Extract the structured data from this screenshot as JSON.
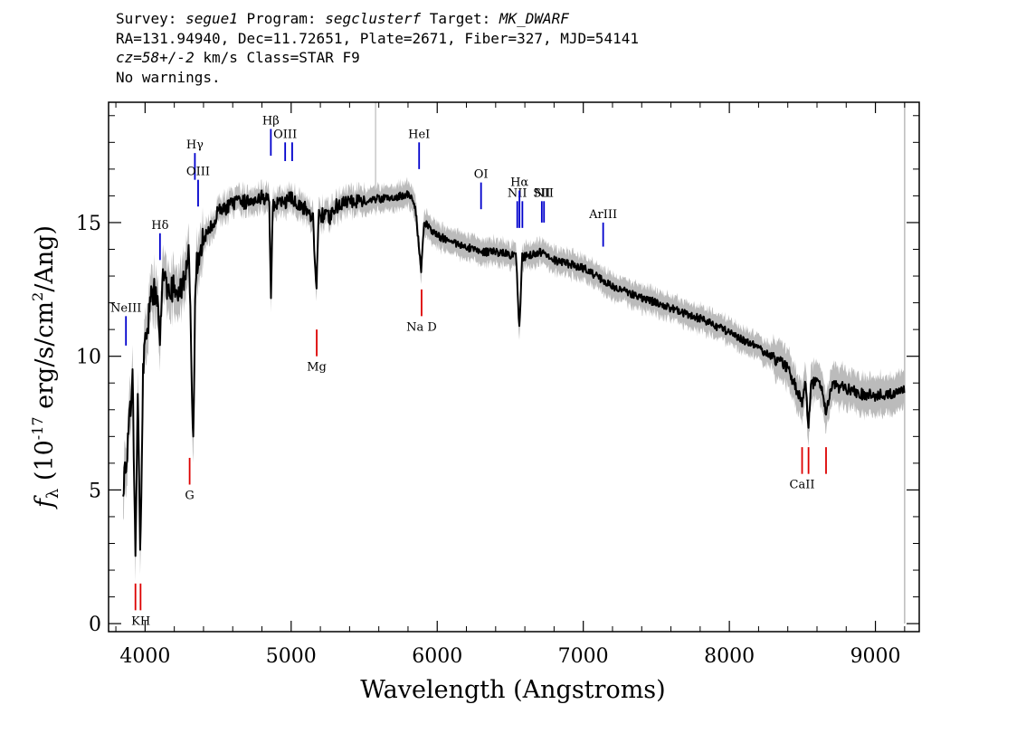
{
  "header": {
    "line1": {
      "survey_label": "Survey: ",
      "survey": "segue1",
      "program_label": " Program: ",
      "program": "segclusterf",
      "target_label": " Target: ",
      "target": "MK_DWARF"
    },
    "line2": "RA=131.94940, Dec=11.72651, Plate=2671, Fiber=327, MJD=54141",
    "line3": {
      "cz": "cz=58+/-2",
      "rest": " km/s Class=STAR F9"
    },
    "line4": "No warnings."
  },
  "chart_data": {
    "type": "line",
    "xlabel": "Wavelength (Angstroms)",
    "ylabel": "f_λ (10^-17 erg/s/cm²/Ang)",
    "ylabel_parts": {
      "f": "f",
      "sub": "λ",
      "pre": " (10",
      "exp": "-17",
      "mid": " erg/s/cm",
      "exp2": "2",
      "post": "/Ang)"
    },
    "xlim": [
      3750,
      9300
    ],
    "ylim": [
      -0.3,
      19.5
    ],
    "xticks": [
      4000,
      5000,
      6000,
      7000,
      8000,
      9000
    ],
    "xtick_labels": [
      "4000",
      "5000",
      "6000",
      "7000",
      "8000",
      "9000"
    ],
    "yticks": [
      0,
      5,
      10,
      15
    ],
    "ytick_labels": [
      "0",
      "5",
      "10",
      "15"
    ],
    "colors": {
      "flux": "#000000",
      "error_band": "#bbbbbb",
      "emission": "#0000cc",
      "absorption": "#dd0000"
    },
    "flux_anchors": [
      [
        3850,
        5.2
      ],
      [
        3880,
        6.5
      ],
      [
        3900,
        8.0
      ],
      [
        3915,
        9.5
      ],
      [
        3933,
        2.2
      ],
      [
        3950,
        8.5
      ],
      [
        3968,
        2.4
      ],
      [
        3985,
        9.5
      ],
      [
        4000,
        10.5
      ],
      [
        4050,
        12.5
      ],
      [
        4080,
        12.3
      ],
      [
        4101,
        10.5
      ],
      [
        4120,
        12.8
      ],
      [
        4200,
        12.5
      ],
      [
        4250,
        12.6
      ],
      [
        4300,
        13.8
      ],
      [
        4330,
        6.5
      ],
      [
        4345,
        13.0
      ],
      [
        4380,
        14.3
      ],
      [
        4400,
        14.3
      ],
      [
        4450,
        14.8
      ],
      [
        4500,
        15.4
      ],
      [
        4600,
        15.7
      ],
      [
        4700,
        15.8
      ],
      [
        4800,
        16.0
      ],
      [
        4850,
        15.8
      ],
      [
        4861,
        12.2
      ],
      [
        4875,
        15.6
      ],
      [
        4920,
        15.7
      ],
      [
        5000,
        15.9
      ],
      [
        5100,
        15.5
      ],
      [
        5150,
        15.2
      ],
      [
        5172,
        12.5
      ],
      [
        5190,
        15.3
      ],
      [
        5270,
        15.2
      ],
      [
        5300,
        15.6
      ],
      [
        5400,
        15.8
      ],
      [
        5500,
        15.8
      ],
      [
        5600,
        15.9
      ],
      [
        5700,
        15.9
      ],
      [
        5800,
        16.1
      ],
      [
        5850,
        15.6
      ],
      [
        5890,
        13.2
      ],
      [
        5910,
        15.0
      ],
      [
        6000,
        14.5
      ],
      [
        6100,
        14.3
      ],
      [
        6200,
        14.1
      ],
      [
        6300,
        13.9
      ],
      [
        6400,
        13.9
      ],
      [
        6500,
        13.8
      ],
      [
        6540,
        13.8
      ],
      [
        6563,
        10.9
      ],
      [
        6580,
        13.7
      ],
      [
        6700,
        13.9
      ],
      [
        6800,
        13.6
      ],
      [
        7000,
        13.3
      ],
      [
        7200,
        12.6
      ],
      [
        7400,
        12.2
      ],
      [
        7600,
        11.8
      ],
      [
        7800,
        11.4
      ],
      [
        8000,
        10.9
      ],
      [
        8200,
        10.3
      ],
      [
        8400,
        9.6
      ],
      [
        8498,
        8.2
      ],
      [
        8520,
        9.1
      ],
      [
        8542,
        7.4
      ],
      [
        8560,
        9.0
      ],
      [
        8620,
        9.0
      ],
      [
        8662,
        7.9
      ],
      [
        8700,
        8.9
      ],
      [
        8800,
        8.8
      ],
      [
        8900,
        8.6
      ],
      [
        9000,
        8.5
      ],
      [
        9100,
        8.6
      ],
      [
        9200,
        8.7
      ]
    ],
    "emission_lines": [
      {
        "label": "NeIII",
        "x": 3869,
        "y_top": 11.5,
        "y_bottom": 10.4
      },
      {
        "label": "Hδ",
        "x": 4102,
        "y_top": 14.6,
        "y_bottom": 13.6
      },
      {
        "label": "Hγ",
        "x": 4341,
        "y_top": 17.6,
        "y_bottom": 16.6
      },
      {
        "label": "OIII",
        "x": 4363,
        "y_top": 16.6,
        "y_bottom": 15.6
      },
      {
        "label": "Hβ",
        "x": 4861,
        "y_top": 18.5,
        "y_bottom": 17.5
      },
      {
        "label": "OIII",
        "x": 4959,
        "y_top": 18.0,
        "y_bottom": 17.3
      },
      {
        "label": "",
        "x": 5007,
        "y_top": 18.0,
        "y_bottom": 17.3
      },
      {
        "label": "HeI",
        "x": 5876,
        "y_top": 18.0,
        "y_bottom": 17.0
      },
      {
        "label": "OI",
        "x": 6300,
        "y_top": 16.5,
        "y_bottom": 15.5
      },
      {
        "label": "NII",
        "x": 6548,
        "y_top": 15.8,
        "y_bottom": 14.8
      },
      {
        "label": "Hα",
        "x": 6563,
        "y_top": 16.2,
        "y_bottom": 14.8
      },
      {
        "label": "",
        "x": 6583,
        "y_top": 15.8,
        "y_bottom": 14.8
      },
      {
        "label": "SII",
        "x": 6716,
        "y_top": 15.8,
        "y_bottom": 15.0
      },
      {
        "label": "NII",
        "x": 6731,
        "y_top": 15.8,
        "y_bottom": 15.0
      },
      {
        "label": "ArIII",
        "x": 7136,
        "y_top": 15.0,
        "y_bottom": 14.1
      }
    ],
    "absorption_lines": [
      {
        "label": "KH",
        "x": 3934,
        "y_top": 1.5,
        "y_bottom": 0.5
      },
      {
        "label": "",
        "x": 3969,
        "y_top": 1.5,
        "y_bottom": 0.5
      },
      {
        "label": "G",
        "x": 4305,
        "y_top": 6.2,
        "y_bottom": 5.2
      },
      {
        "label": "Mg",
        "x": 5175,
        "y_top": 11.0,
        "y_bottom": 10.0
      },
      {
        "label": "Na D",
        "x": 5893,
        "y_top": 12.5,
        "y_bottom": 11.5
      },
      {
        "label": "CaII",
        "x": 8498,
        "y_top": 6.6,
        "y_bottom": 5.6
      },
      {
        "label": "",
        "x": 8542,
        "y_top": 6.6,
        "y_bottom": 5.6
      },
      {
        "label": "",
        "x": 8662,
        "y_top": 6.6,
        "y_bottom": 5.6
      }
    ]
  }
}
